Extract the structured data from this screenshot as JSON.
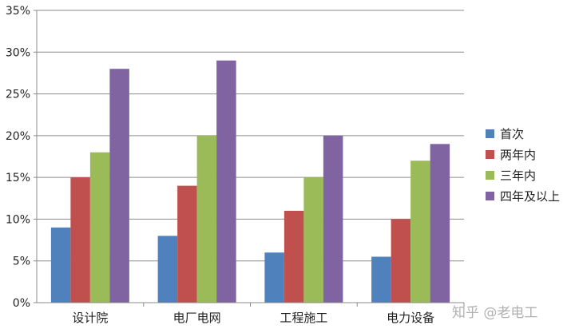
{
  "chart_data": {
    "type": "bar",
    "title": "",
    "xlabel": "",
    "ylabel": "",
    "ylim": [
      0,
      35
    ],
    "y_ticks": [
      "0%",
      "5%",
      "10%",
      "15%",
      "20%",
      "25%",
      "30%",
      "35%"
    ],
    "y_tick_values": [
      0,
      5,
      10,
      15,
      20,
      25,
      30,
      35
    ],
    "grid": true,
    "legend_position": "right",
    "categories": [
      "设计院",
      "电厂电网",
      "工程施工",
      "电力设备"
    ],
    "series": [
      {
        "name": "首次",
        "color": "#4f81bd",
        "values": [
          9,
          8,
          6,
          5.5
        ]
      },
      {
        "name": "两年内",
        "color": "#c0504d",
        "values": [
          15,
          14,
          11,
          10
        ]
      },
      {
        "name": "三年内",
        "color": "#9bbb59",
        "values": [
          18,
          20,
          15,
          17
        ]
      },
      {
        "name": "四年及以上",
        "color": "#8064a2",
        "values": [
          28,
          29,
          20,
          19
        ]
      }
    ]
  },
  "watermark": "知乎 @老电工"
}
